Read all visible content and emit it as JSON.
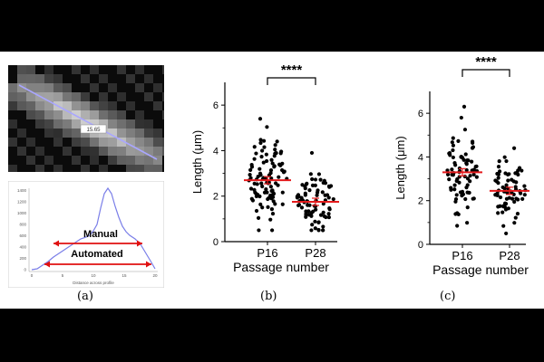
{
  "captions": {
    "a": "(a)",
    "b": "(b)",
    "c": "(c)"
  },
  "panel_a": {
    "measure_label": "15.65",
    "manual_label": "Manual",
    "automated_label": "Automated",
    "profile_xlabel": "Distance across profile",
    "profile_yticks": [
      "1400",
      "1200",
      "1000",
      "800",
      "600",
      "400",
      "200",
      "0"
    ],
    "profile_xticks": [
      "0",
      "5",
      "10",
      "15",
      "20"
    ],
    "colors": {
      "profile_line": "#7a7ee8",
      "arrow": "#e01010",
      "measure_line": "#a9a6ff"
    }
  },
  "chart_data": [
    {
      "id": "b",
      "type": "scatter",
      "subtype": "dot-plot",
      "categories": [
        "P16",
        "P28"
      ],
      "xlabel": "Passage number",
      "ylabel": "Length (μm)",
      "ylim": [
        0,
        7
      ],
      "yticks": [
        0,
        2,
        4,
        6
      ],
      "significance": "****",
      "series": [
        {
          "name": "P16",
          "mean": 2.7,
          "min": 0.5,
          "max": 5.4,
          "n": 100
        },
        {
          "name": "P28",
          "mean": 1.75,
          "min": 0.5,
          "max": 3.9,
          "n": 80
        }
      ],
      "mean_color": "#e41a1c",
      "dot_color": "#000000"
    },
    {
      "id": "c",
      "type": "scatter",
      "subtype": "dot-plot",
      "categories": [
        "P16",
        "P28"
      ],
      "xlabel": "Passage number",
      "ylabel": "Length (μm)",
      "ylim": [
        0,
        7
      ],
      "yticks": [
        0,
        2,
        4,
        6
      ],
      "significance": "****",
      "series": [
        {
          "name": "P16",
          "mean": 3.3,
          "min": 0.85,
          "max": 6.3,
          "n": 80
        },
        {
          "name": "P28",
          "mean": 2.45,
          "min": 0.5,
          "max": 4.4,
          "n": 70
        }
      ],
      "mean_color": "#e41a1c",
      "dot_color": "#000000"
    }
  ]
}
